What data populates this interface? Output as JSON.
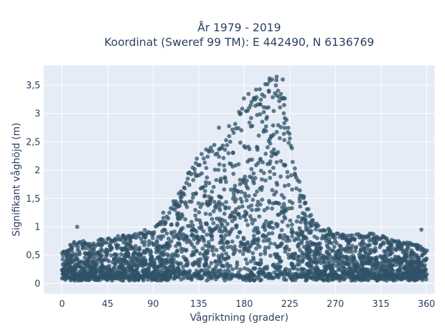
{
  "chart_data": {
    "type": "scatter",
    "title_line1": "År 1979 - 2019",
    "title_line2": "Koordinat (Sweref 99 TM): E 442490, N 6136769",
    "xlabel": "Vågriktning (grader)",
    "ylabel": "Signifikant våghöjd (m)",
    "xlim": [
      -18,
      368
    ],
    "ylim": [
      -0.18,
      3.85
    ],
    "xticks": [
      0,
      45,
      90,
      135,
      180,
      225,
      270,
      315,
      360
    ],
    "xtick_labels": [
      "0",
      "45",
      "90",
      "135",
      "180",
      "225",
      "270",
      "315",
      "360"
    ],
    "yticks": [
      0,
      0.5,
      1,
      1.5,
      2,
      2.5,
      3,
      3.5
    ],
    "ytick_labels": [
      "0",
      "0,5",
      "1",
      "1,5",
      "2",
      "2,5",
      "3",
      "3,5"
    ],
    "grid": true,
    "marker_color": "#2f5167",
    "background_color": "#e5ecf6",
    "envelope": {
      "direction": [
        0,
        15,
        30,
        45,
        60,
        75,
        90,
        100,
        110,
        120,
        130,
        140,
        150,
        160,
        170,
        180,
        190,
        200,
        205,
        210,
        215,
        220,
        225,
        230,
        235,
        240,
        250,
        260,
        270,
        285,
        300,
        315,
        330,
        345,
        360
      ],
      "max_height": [
        0.55,
        0.75,
        0.7,
        0.8,
        0.85,
        0.9,
        0.95,
        1.15,
        1.4,
        1.75,
        2.2,
        2.35,
        2.45,
        2.55,
        2.8,
        3.35,
        3.4,
        3.55,
        3.6,
        3.62,
        3.55,
        3.3,
        2.7,
        2.1,
        1.75,
        1.45,
        1.1,
        0.95,
        0.9,
        0.85,
        0.9,
        0.85,
        0.75,
        0.7,
        0.6
      ]
    },
    "notable_points": {
      "x": [
        15,
        100,
        110,
        155,
        165,
        205,
        212,
        218,
        355
      ],
      "y": [
        1.0,
        1.25,
        1.45,
        2.75,
        2.78,
        3.62,
        3.65,
        3.6,
        0.95
      ]
    }
  }
}
